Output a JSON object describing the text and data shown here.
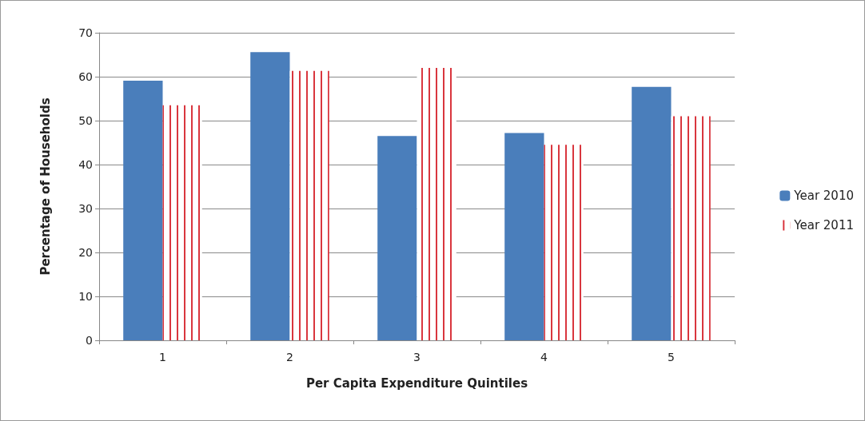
{
  "chart_data": {
    "type": "bar",
    "xlabel": "Per Capita Expenditure Quintiles",
    "ylabel": "Percentage of Households",
    "categories": [
      "1",
      "2",
      "3",
      "4",
      "5"
    ],
    "series": [
      {
        "name": "Year 2010",
        "color": "#4a7ebb",
        "values": [
          59.1,
          65.6,
          46.5,
          47.2,
          57.7
        ]
      },
      {
        "name": "Year 2011",
        "color": "#d9363e",
        "values": [
          53.5,
          61.3,
          62.0,
          44.5,
          51.0
        ]
      }
    ],
    "ylim": [
      0,
      70
    ],
    "yticks": [
      0,
      10,
      20,
      30,
      40,
      50,
      60,
      70
    ],
    "grid": "y",
    "legend": "right"
  }
}
